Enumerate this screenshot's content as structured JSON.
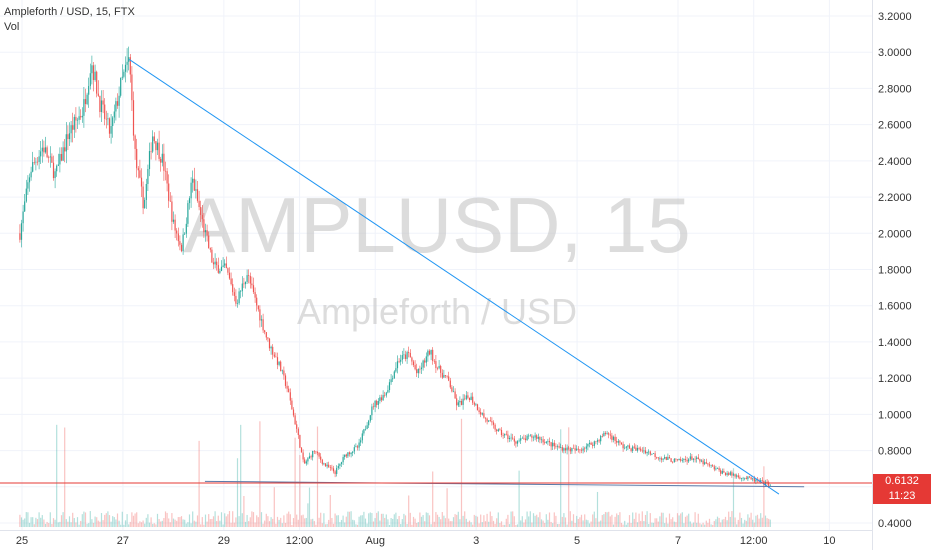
{
  "header": {
    "symbol_line": "Ampleforth / USD, 15, FTX",
    "indicator": "Vol"
  },
  "watermark": {
    "ticker": "AMPLUSD, 15",
    "name": "Ampleforth / USD"
  },
  "current_price": {
    "value_label": "0.6132",
    "countdown_label": "11:23",
    "color": "#e53935"
  },
  "colors": {
    "up": "#26a69a",
    "down": "#ef5350",
    "trendline": "#2196f3",
    "watermark": "#c4c4c4"
  },
  "chart_data": {
    "type": "candlestick",
    "symbol": "AMPLUSD",
    "interval": "15",
    "exchange": "FTX",
    "y_axis": {
      "ticks": [
        "3.2000",
        "3.0000",
        "2.8000",
        "2.6000",
        "2.4000",
        "2.2000",
        "2.0000",
        "1.8000",
        "1.6000",
        "1.4000",
        "1.2000",
        "1.0000",
        "0.8000",
        "0.6000",
        "0.4000"
      ],
      "range": [
        0.4,
        3.2
      ]
    },
    "x_axis": {
      "ticks": [
        "25",
        "27",
        "29",
        "12:00",
        "Aug",
        "3",
        "5",
        "7",
        "12:00",
        "10"
      ]
    },
    "price_path": [
      {
        "x": "24 Jul 23:00",
        "y": 2.0
      },
      {
        "x": "25 Jul 04:00",
        "y": 2.35
      },
      {
        "x": "25 Jul 10:00",
        "y": 2.48
      },
      {
        "x": "25 Jul 16:00",
        "y": 2.32
      },
      {
        "x": "25 Jul 22:00",
        "y": 2.55
      },
      {
        "x": "26 Jul 05:00",
        "y": 2.68
      },
      {
        "x": "26 Jul 09:00",
        "y": 2.95
      },
      {
        "x": "26 Jul 13:00",
        "y": 2.72
      },
      {
        "x": "26 Jul 18:00",
        "y": 2.55
      },
      {
        "x": "26 Jul 23:00",
        "y": 2.82
      },
      {
        "x": "27 Jul 03:00",
        "y": 2.96
      },
      {
        "x": "27 Jul 06:00",
        "y": 2.4
      },
      {
        "x": "27 Jul 10:00",
        "y": 2.15
      },
      {
        "x": "27 Jul 14:00",
        "y": 2.55
      },
      {
        "x": "27 Jul 19:00",
        "y": 2.4
      },
      {
        "x": "28 Jul 00:00",
        "y": 2.05
      },
      {
        "x": "28 Jul 04:00",
        "y": 1.92
      },
      {
        "x": "28 Jul 09:00",
        "y": 2.3
      },
      {
        "x": "28 Jul 14:00",
        "y": 2.05
      },
      {
        "x": "28 Jul 19:00",
        "y": 1.82
      },
      {
        "x": "29 Jul 01:00",
        "y": 1.8
      },
      {
        "x": "29 Jul 06:00",
        "y": 1.62
      },
      {
        "x": "29 Jul 11:00",
        "y": 1.78
      },
      {
        "x": "29 Jul 17:00",
        "y": 1.55
      },
      {
        "x": "29 Jul 21:00",
        "y": 1.4
      },
      {
        "x": "30 Jul 02:00",
        "y": 1.28
      },
      {
        "x": "30 Jul 06:00",
        "y": 1.15
      },
      {
        "x": "30 Jul 11:00",
        "y": 0.9
      },
      {
        "x": "30 Jul 14:00",
        "y": 0.72
      },
      {
        "x": "30 Jul 19:00",
        "y": 0.8
      },
      {
        "x": "31 Jul 00:00",
        "y": 0.72
      },
      {
        "x": "31 Jul 05:00",
        "y": 0.68
      },
      {
        "x": "31 Jul 10:00",
        "y": 0.78
      },
      {
        "x": "31 Jul 16:00",
        "y": 0.82
      },
      {
        "x": "31 Jul 23:00",
        "y": 1.05
      },
      {
        "x": "1 Aug 05:00",
        "y": 1.12
      },
      {
        "x": "1 Aug 11:00",
        "y": 1.3
      },
      {
        "x": "1 Aug 16:00",
        "y": 1.33
      },
      {
        "x": "1 Aug 20:00",
        "y": 1.22
      },
      {
        "x": "2 Aug 02:00",
        "y": 1.35
      },
      {
        "x": "2 Aug 06:00",
        "y": 1.25
      },
      {
        "x": "2 Aug 11:00",
        "y": 1.18
      },
      {
        "x": "2 Aug 15:00",
        "y": 1.05
      },
      {
        "x": "2 Aug 21:00",
        "y": 1.1
      },
      {
        "x": "3 Aug 04:00",
        "y": 0.98
      },
      {
        "x": "3 Aug 11:00",
        "y": 0.9
      },
      {
        "x": "3 Aug 19:00",
        "y": 0.85
      },
      {
        "x": "4 Aug 04:00",
        "y": 0.88
      },
      {
        "x": "4 Aug 14:00",
        "y": 0.82
      },
      {
        "x": "5 Aug 00:00",
        "y": 0.8
      },
      {
        "x": "5 Aug 09:00",
        "y": 0.85
      },
      {
        "x": "5 Aug 14:00",
        "y": 0.9
      },
      {
        "x": "5 Aug 22:00",
        "y": 0.82
      },
      {
        "x": "6 Aug 08:00",
        "y": 0.8
      },
      {
        "x": "6 Aug 16:00",
        "y": 0.76
      },
      {
        "x": "7 Aug 00:00",
        "y": 0.74
      },
      {
        "x": "7 Aug 07:00",
        "y": 0.76
      },
      {
        "x": "7 Aug 14:00",
        "y": 0.72
      },
      {
        "x": "7 Aug 21:00",
        "y": 0.68
      },
      {
        "x": "8 Aug 04:00",
        "y": 0.66
      },
      {
        "x": "8 Aug 11:00",
        "y": 0.64
      },
      {
        "x": "8 Aug 17:00",
        "y": 0.62
      },
      {
        "x": "8 Aug 20:00",
        "y": 0.613
      }
    ],
    "trendlines": [
      {
        "kind": "descending",
        "start": {
          "x": "27 Jul 03:00",
          "y": 2.96
        },
        "end": {
          "x": "9 Aug 00:00",
          "y": 0.56
        }
      },
      {
        "kind": "support",
        "start": {
          "x": "28 Jul 15:00",
          "y": 0.63
        },
        "end": {
          "x": "9 Aug 12:00",
          "y": 0.6
        }
      }
    ],
    "grid": true,
    "legend": "none"
  }
}
